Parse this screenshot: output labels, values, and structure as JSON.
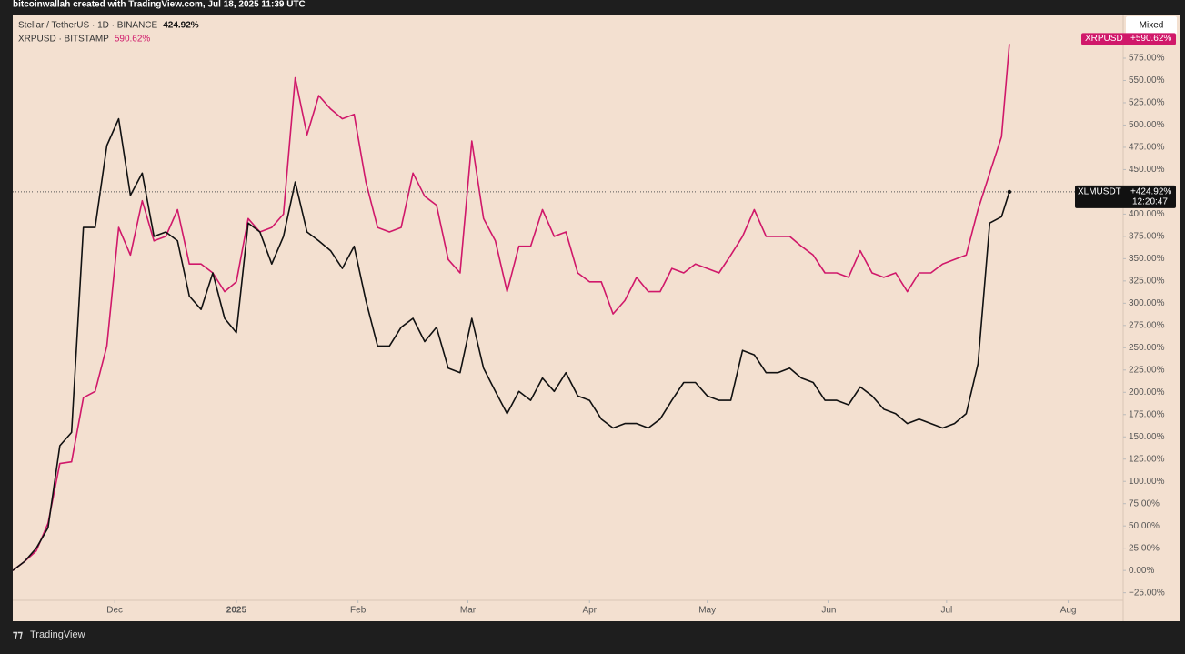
{
  "header": "bitcoinwallah created with TradingView.com, Jul 18, 2025 11:39 UTC",
  "scale_mode": "Mixed",
  "brand": "TradingView",
  "chart_data": {
    "type": "line",
    "x": [
      0,
      3,
      6,
      9,
      12,
      15,
      18,
      21,
      24,
      27,
      30,
      33,
      36,
      39,
      42,
      45,
      48,
      51,
      54,
      57,
      60,
      63,
      66,
      69,
      72,
      75,
      78,
      81,
      84,
      87,
      90,
      93,
      96,
      99,
      102,
      105,
      108,
      111,
      114,
      117,
      120,
      123,
      126,
      129,
      132,
      135,
      138,
      141,
      144,
      147,
      150,
      153,
      156,
      159,
      162,
      165,
      168,
      171,
      174,
      177,
      180,
      183,
      186,
      189,
      192,
      195,
      198,
      201,
      204,
      207,
      210,
      213,
      216,
      219,
      222,
      225,
      228,
      231,
      234,
      237,
      240,
      243,
      246,
      249,
      252,
      254
    ],
    "series": [
      {
        "name": "XRPUSD",
        "legend": "XRPUSD · BITSTAMP",
        "legend_value": "590.62%",
        "tag_value": "+590.62%",
        "color": "#d0186a",
        "values": [
          0,
          10,
          22,
          53,
          120,
          122,
          194,
          201,
          252,
          385,
          354,
          415,
          370,
          375,
          405,
          344,
          344,
          334,
          313,
          324,
          395,
          380,
          385,
          400,
          553,
          489,
          533,
          518,
          507,
          512,
          436,
          385,
          380,
          385,
          446,
          420,
          410,
          349,
          334,
          482,
          395,
          370,
          313,
          364,
          364,
          405,
          375,
          380,
          334,
          324,
          324,
          288,
          303,
          329,
          313,
          313,
          339,
          334,
          344,
          339,
          334,
          354,
          375,
          405,
          375,
          375,
          375,
          364,
          354,
          334,
          334,
          329,
          359,
          334,
          329,
          334,
          313,
          334,
          334,
          344,
          349,
          354,
          405,
          446,
          487,
          591
        ]
      },
      {
        "name": "XLMUSDT",
        "legend": "Stellar / TetherUS · 1D · BINANCE",
        "legend_value": "424.92%",
        "tag_value": "+424.92%",
        "tag_time": "12:20:47",
        "color": "#111111",
        "values": [
          0,
          10,
          25,
          48,
          140,
          155,
          385,
          385,
          477,
          507,
          421,
          446,
          375,
          380,
          370,
          308,
          293,
          334,
          283,
          267,
          390,
          380,
          344,
          375,
          436,
          380,
          370,
          359,
          339,
          364,
          303,
          252,
          252,
          273,
          283,
          257,
          273,
          227,
          222,
          283,
          227,
          201,
          176,
          201,
          191,
          216,
          201,
          222,
          196,
          191,
          170,
          160,
          165,
          165,
          160,
          170,
          191,
          211,
          211,
          196,
          191,
          191,
          247,
          242,
          222,
          222,
          227,
          216,
          211,
          191,
          191,
          186,
          206,
          196,
          181,
          176,
          165,
          170,
          165,
          160,
          165,
          176,
          232,
          390,
          397,
          425
        ]
      }
    ],
    "xlim": [
      0,
      283
    ],
    "xticks": [
      {
        "value": 26,
        "label": "Dec"
      },
      {
        "value": 57,
        "label": "2025"
      },
      {
        "value": 88,
        "label": "Feb"
      },
      {
        "value": 116,
        "label": "Mar"
      },
      {
        "value": 147,
        "label": "Apr"
      },
      {
        "value": 177,
        "label": "May"
      },
      {
        "value": 208,
        "label": "Jun"
      },
      {
        "value": 238,
        "label": "Jul"
      },
      {
        "value": 269,
        "label": "Aug"
      }
    ],
    "ylim": [
      -57,
      624
    ],
    "yticks": [
      {
        "value": -25,
        "label": "−25.00%"
      },
      {
        "value": 0,
        "label": "0.00%"
      },
      {
        "value": 25,
        "label": "25.00%"
      },
      {
        "value": 50,
        "label": "50.00%"
      },
      {
        "value": 75,
        "label": "75.00%"
      },
      {
        "value": 100,
        "label": "100.00%"
      },
      {
        "value": 125,
        "label": "125.00%"
      },
      {
        "value": 150,
        "label": "150.00%"
      },
      {
        "value": 175,
        "label": "175.00%"
      },
      {
        "value": 200,
        "label": "200.00%"
      },
      {
        "value": 225,
        "label": "225.00%"
      },
      {
        "value": 250,
        "label": "250.00%"
      },
      {
        "value": 275,
        "label": "275.00%"
      },
      {
        "value": 300,
        "label": "300.00%"
      },
      {
        "value": 325,
        "label": "325.00%"
      },
      {
        "value": 350,
        "label": "350.00%"
      },
      {
        "value": 375,
        "label": "375.00%"
      },
      {
        "value": 400,
        "label": "400.00%"
      },
      {
        "value": 425,
        "label": "425.00%"
      },
      {
        "value": 450,
        "label": "450.00%"
      },
      {
        "value": 475,
        "label": "475.00%"
      },
      {
        "value": 500,
        "label": "500.00%"
      },
      {
        "value": 525,
        "label": "525.00%"
      },
      {
        "value": 550,
        "label": "550.00%"
      },
      {
        "value": 575,
        "label": "575.00%"
      }
    ],
    "grid": false
  }
}
